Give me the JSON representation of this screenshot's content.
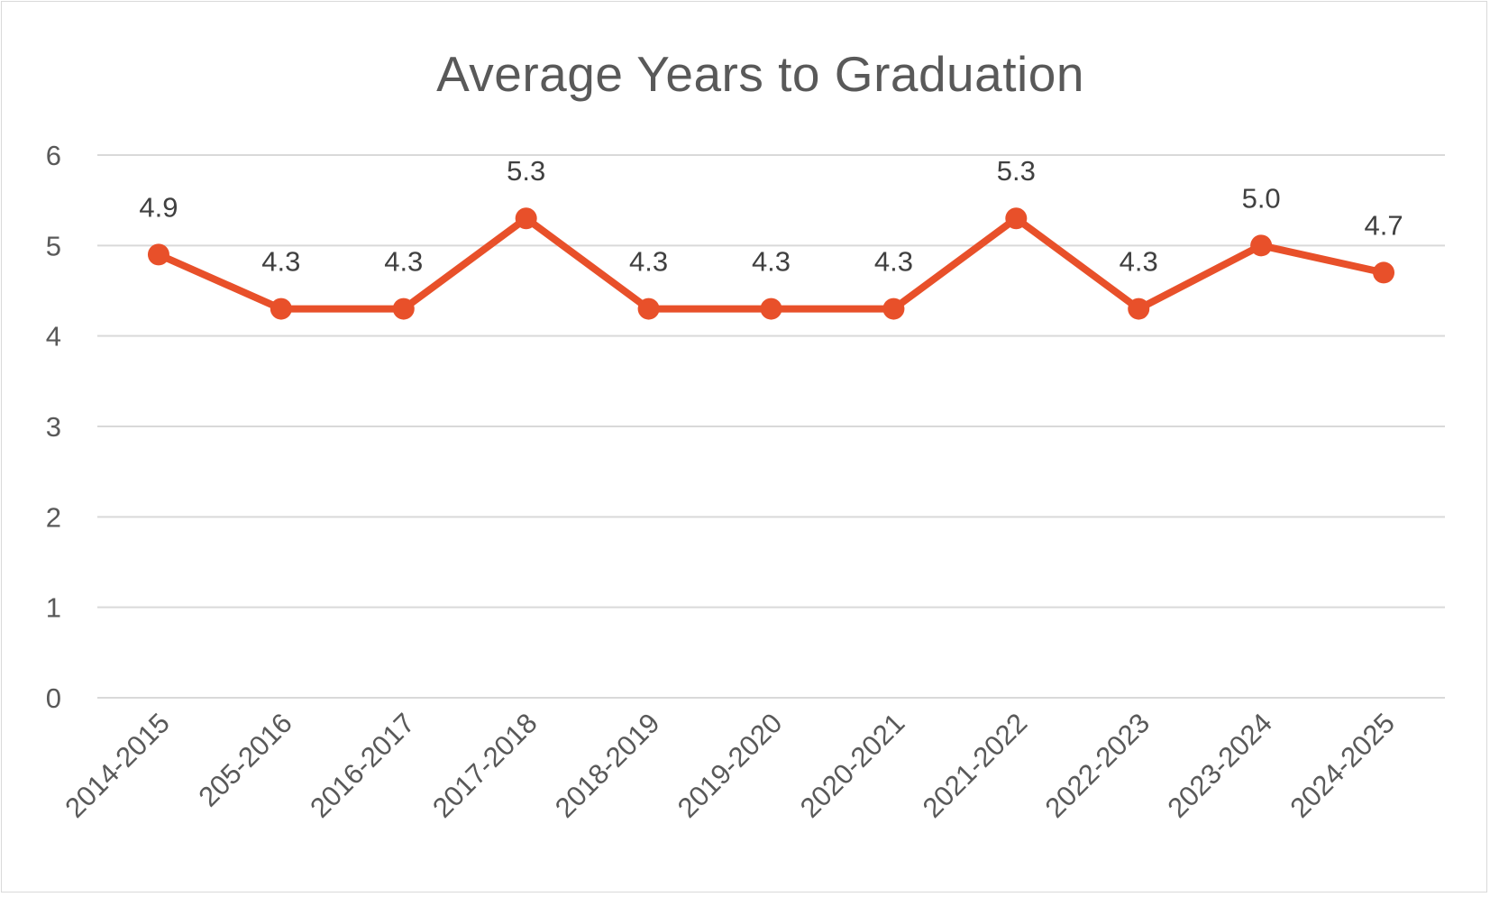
{
  "chart_data": {
    "type": "line",
    "title": "Average Years to Graduation",
    "xlabel": "",
    "ylabel": "",
    "categories": [
      "2014-2015",
      "205-2016",
      "2016-2017",
      "2017-2018",
      "2018-2019",
      "2019-2020",
      "2020-2021",
      "2021-2022",
      "2022-2023",
      "2023-2024",
      "2024-2025"
    ],
    "series": [
      {
        "values": [
          4.9,
          4.3,
          4.3,
          5.3,
          4.3,
          4.3,
          4.3,
          5.3,
          4.3,
          5.0,
          4.7
        ],
        "data_labels": [
          "4.9",
          "4.3",
          "4.3",
          "5.3",
          "4.3",
          "4.3",
          "4.3",
          "5.3",
          "4.3",
          "5.0",
          "4.7"
        ],
        "color": "#e8502a"
      }
    ],
    "ylim": [
      0,
      6
    ],
    "yticks": [
      "0",
      "1",
      "2",
      "3",
      "4",
      "5",
      "6"
    ],
    "grid": true,
    "legend": "none",
    "colors": {
      "gridline": "#d9d9d9",
      "text": "#595959",
      "label": "#404040"
    }
  }
}
